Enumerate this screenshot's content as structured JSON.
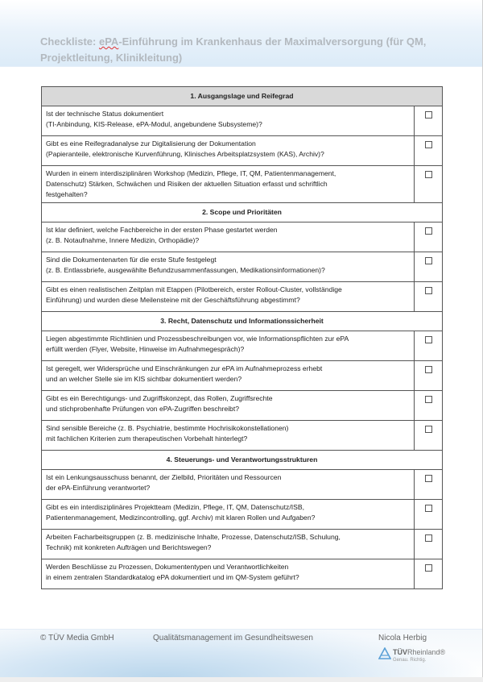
{
  "document": {
    "title_prefix": "Checkliste: ",
    "title_marked": "ePA",
    "title_rest": "-Einführung im Krankenhaus der Maximalversorgung (für QM, Projektleitung, Klinikleitung)"
  },
  "sections": [
    {
      "heading": "1. Ausgangslage und Reifegrad",
      "items": [
        {
          "text": "Ist der technische Status dokumentiert\n(TI-Anbindung, KIS-Release, ePA-Modul, angebundene Subsysteme)?",
          "checked": false
        },
        {
          "text": "Gibt es eine Reifegradanalyse zur Digitalisierung der Dokumentation\n(Papieranteile, elektronische Kurvenführung, Klinisches Arbeitsplatzsystem (KAS), Archiv)?",
          "checked": false
        },
        {
          "text": "Wurden in einem interdisziplinären Workshop (Medizin, Pflege, IT, QM, Patientenmanagement,\nDatenschutz) Stärken, Schwächen und Risiken der aktuellen Situation erfasst und schriftlich\nfestgehalten?",
          "checked": false
        }
      ]
    },
    {
      "heading": "2. Scope und Prioritäten",
      "items": [
        {
          "text": "Ist klar definiert, welche Fachbereiche in der ersten Phase gestartet werden\n(z. B. Notaufnahme, Innere Medizin, Orthopädie)?",
          "checked": false
        },
        {
          "text": "Sind die Dokumentenarten für die erste Stufe festgelegt\n(z. B. Entlassbriefe, ausgewählte Befundzusammenfassungen, Medikationsinformationen)?",
          "checked": false
        },
        {
          "text": "Gibt es einen realistischen Zeitplan mit Etappen (Pilotbereich, erster Rollout-Cluster, vollständige\nEinführung) und wurden diese Meilensteine mit der Geschäftsführung abgestimmt?",
          "checked": false
        }
      ]
    },
    {
      "heading": "3. Recht, Datenschutz und Informationssicherheit",
      "items": [
        {
          "text": "Liegen abgestimmte Richtlinien und Prozessbeschreibungen vor, wie Informationspflichten zur ePA\nerfüllt werden (Flyer, Website, Hinweise im Aufnahmegespräch)?",
          "checked": false
        },
        {
          "text": "Ist geregelt, wer Widersprüche und Einschränkungen zur ePA im Aufnahmeprozess erhebt\nund an welcher Stelle sie im KIS sichtbar dokumentiert werden?",
          "checked": false
        },
        {
          "text": "Gibt es ein Berechtigungs- und Zugriffskonzept, das Rollen, Zugriffsrechte\nund stichprobenhafte Prüfungen von ePA-Zugriffen beschreibt?",
          "checked": false
        },
        {
          "text": "Sind sensible Bereiche (z. B. Psychiatrie, bestimmte Hochrisikokonstellationen)\nmit fachlichen Kriterien zum therapeutischen Vorbehalt hinterlegt?",
          "checked": false
        }
      ]
    },
    {
      "heading": "4. Steuerungs- und Verantwortungsstrukturen",
      "items": [
        {
          "text": "Ist ein Lenkungsausschuss benannt, der Zielbild, Prioritäten und Ressourcen\nder ePA-Einführung verantwortet?",
          "checked": false
        },
        {
          "text": "Gibt es ein interdisziplinäres Projektteam (Medizin, Pflege, IT, QM, Datenschutz/ISB,\nPatientenmanagement, Medizincontrolling, ggf. Archiv) mit klaren Rollen und Aufgaben?",
          "checked": false
        },
        {
          "text": "Arbeiten Facharbeitsgruppen (z. B. medizinische Inhalte, Prozesse, Datenschutz/ISB, Schulung,\nTechnik) mit konkreten Aufträgen und Berichtswegen?",
          "checked": false
        },
        {
          "text": "Werden Beschlüsse zu Prozessen, Dokumententypen und Verantwortlichkeiten\nin einem zentralen Standardkatalog ePA dokumentiert und im QM-System geführt?",
          "checked": false
        }
      ]
    }
  ],
  "footer": {
    "copyright": "© TÜV Media GmbH",
    "publication": "Qualitätsmanagement im Gesundheitswesen",
    "author": "Nicola Herbig",
    "logo_brand_bold": "TÜV",
    "logo_brand_rest": "Rheinland®",
    "logo_slogan": "Genau. Richtig."
  },
  "colors": {
    "section_header_bg": "#d9d9d9",
    "title_text": "#b3b9bf",
    "logo_blue": "#5aa0d6"
  }
}
